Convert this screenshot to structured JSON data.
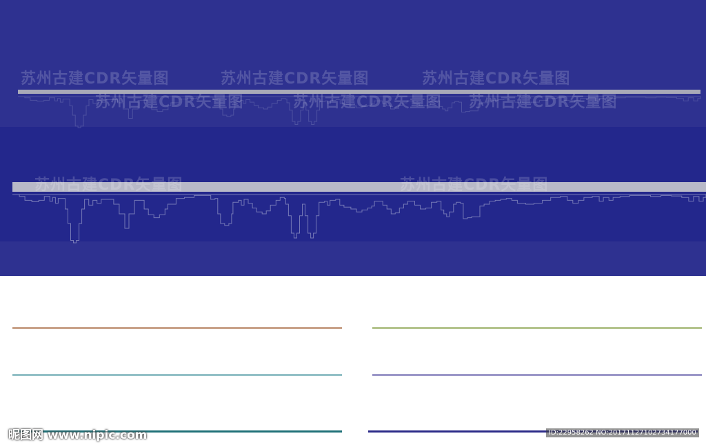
{
  "colors": {
    "top_band": "#2e3190",
    "mid_band": "#23278c",
    "bottom_band": "#2e3190",
    "skyline_top": "#a9aab8",
    "skyline_mid": "#b8b9c8",
    "reflection_top": "#5b5fa8",
    "reflection_mid": "#8a8dc0",
    "white_bg": "#ffffff"
  },
  "skylines": [
    {
      "name": "skyline-tan",
      "color": "#c9a38a"
    },
    {
      "name": "skyline-green",
      "color": "#b4c48e"
    },
    {
      "name": "skyline-lightblue",
      "color": "#93c0c6"
    },
    {
      "name": "skyline-lavender",
      "color": "#9b97c8"
    },
    {
      "name": "skyline-teal",
      "color": "#1f7178"
    },
    {
      "name": "skyline-navy",
      "color": "#2b2a88"
    }
  ],
  "watermarks": {
    "text1": "苏州古建CDR矢量图",
    "text2": "苏州古建CDR矢量图",
    "text3": "苏州古建CDR矢量图",
    "text4": "苏州古建CDR矢量图",
    "text5": "苏州古建CDR矢量图",
    "text6": "苏州古建CDR矢量图",
    "text7": "苏州古建CDR矢量图",
    "text8": "苏州古建CDR矢量图"
  },
  "footer": {
    "logo": "昵图网 www.nipic.com",
    "id": "ID:22958262 NO:20171127102734177000"
  }
}
